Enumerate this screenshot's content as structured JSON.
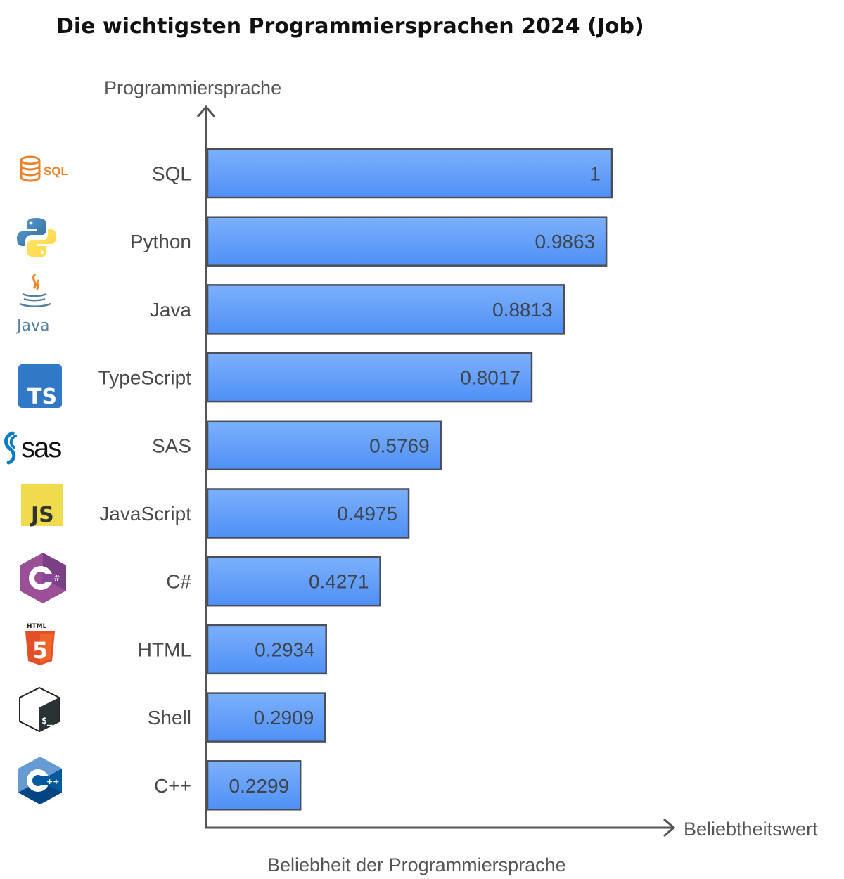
{
  "chart_data": {
    "type": "bar",
    "orientation": "horizontal",
    "title": "Die wichtigsten Programmiersprachen 2024 (Job)",
    "ylabel": "Programmiersprache",
    "xlabel": "Beliebtheitswert",
    "caption": "Beliebheit der Programmiersprache",
    "categories": [
      "SQL",
      "Python",
      "Java",
      "TypeScript",
      "SAS",
      "JavaScript",
      "C#",
      "HTML",
      "Shell",
      "C++"
    ],
    "values": [
      1,
      0.9863,
      0.8813,
      0.8017,
      0.5769,
      0.4975,
      0.4271,
      0.2934,
      0.2909,
      0.2299
    ],
    "value_labels": [
      "1",
      "0.9863",
      "0.8813",
      "0.8017",
      "0.5769",
      "0.4975",
      "0.4271",
      "0.2934",
      "0.2909",
      "0.2299"
    ],
    "icons": [
      "sql-logo-icon",
      "python-logo-icon",
      "java-logo-icon",
      "typescript-logo-icon",
      "sas-logo-icon",
      "javascript-logo-icon",
      "csharp-logo-icon",
      "html5-logo-icon",
      "bash-shell-logo-icon",
      "cplusplus-logo-icon"
    ],
    "xlim": [
      0,
      1
    ],
    "grid": false,
    "legend": "none",
    "bar_color": "#5b9bf8",
    "bar_color_light": "#79aefb",
    "bar_outline_color": "#4a4f58"
  },
  "logo_text": {
    "sql": "SQL",
    "ts": "TS",
    "sas": "sas",
    "js": "JS",
    "java": "Java",
    "html": "HTML",
    "html_number": "5",
    "csharp_mark": "#",
    "cpp_mark": "++",
    "shell_prompt": "$_"
  }
}
